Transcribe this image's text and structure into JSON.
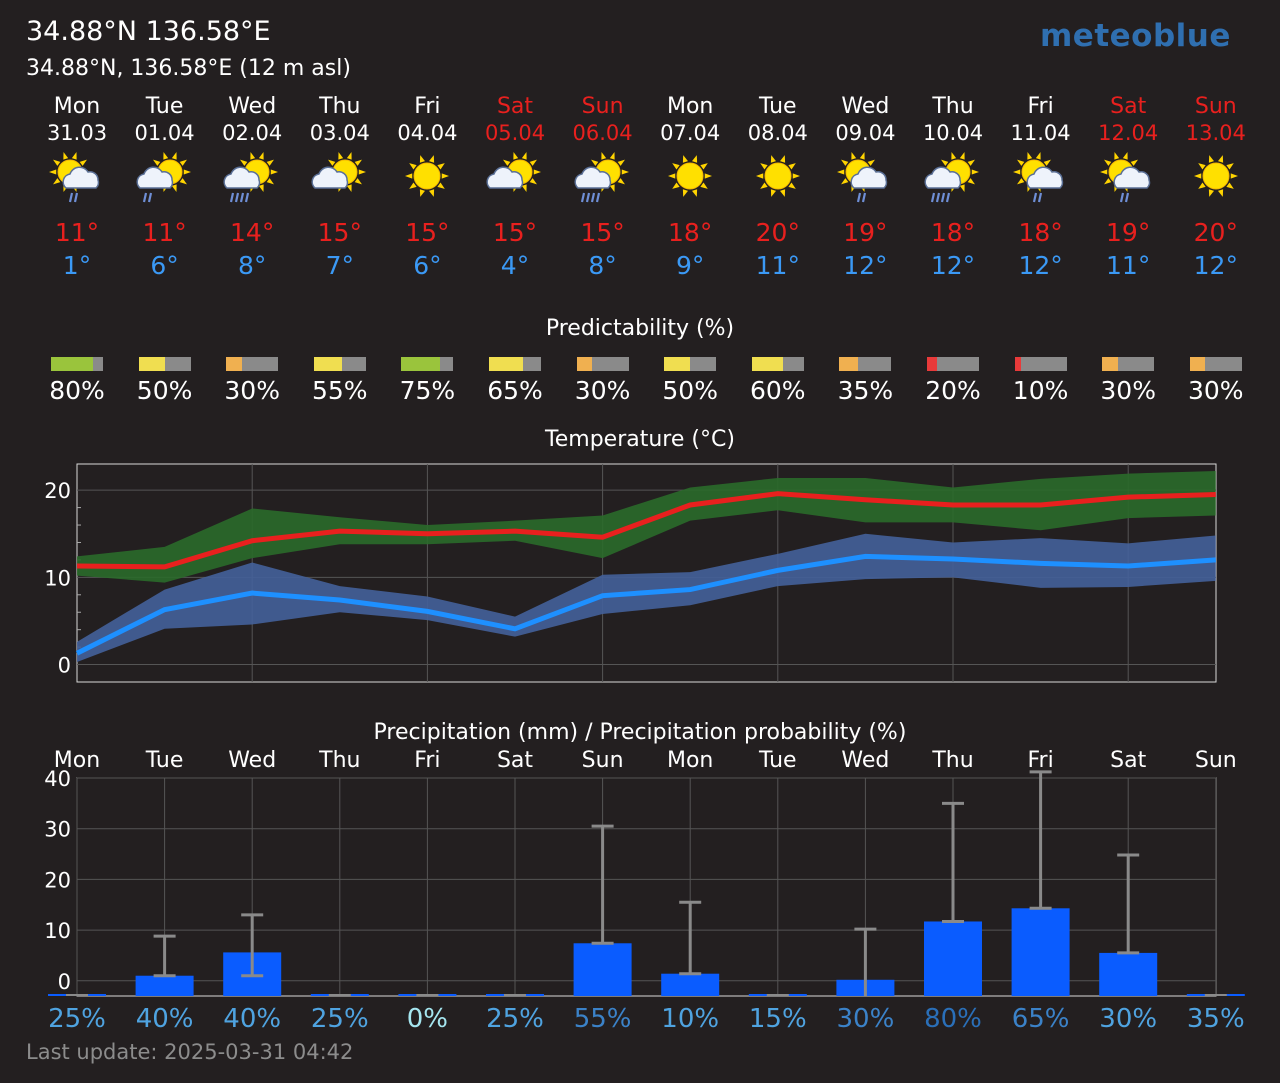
{
  "header": {
    "title": "34.88°N 136.58°E",
    "subtitle": "34.88°N, 136.58°E (12 m asl)",
    "logo": "meteoblue"
  },
  "days": [
    {
      "name": "Mon",
      "date": "31.03",
      "weekend": false,
      "icon": "sun-cloud-light-rain",
      "tmax": "11°",
      "tmin": "1°"
    },
    {
      "name": "Tue",
      "date": "01.04",
      "weekend": false,
      "icon": "cloud-sun-light-rain",
      "tmax": "11°",
      "tmin": "6°"
    },
    {
      "name": "Wed",
      "date": "02.04",
      "weekend": false,
      "icon": "cloud-sun-rain",
      "tmax": "14°",
      "tmin": "8°"
    },
    {
      "name": "Thu",
      "date": "03.04",
      "weekend": false,
      "icon": "cloud-sun",
      "tmax": "15°",
      "tmin": "7°"
    },
    {
      "name": "Fri",
      "date": "04.04",
      "weekend": false,
      "icon": "sun",
      "tmax": "15°",
      "tmin": "6°"
    },
    {
      "name": "Sat",
      "date": "05.04",
      "weekend": true,
      "icon": "cloud-sun",
      "tmax": "15°",
      "tmin": "4°"
    },
    {
      "name": "Sun",
      "date": "06.04",
      "weekend": true,
      "icon": "cloud-sun-rain",
      "tmax": "15°",
      "tmin": "8°"
    },
    {
      "name": "Mon",
      "date": "07.04",
      "weekend": false,
      "icon": "sun",
      "tmax": "18°",
      "tmin": "9°"
    },
    {
      "name": "Tue",
      "date": "08.04",
      "weekend": false,
      "icon": "sun",
      "tmax": "20°",
      "tmin": "11°"
    },
    {
      "name": "Wed",
      "date": "09.04",
      "weekend": false,
      "icon": "sun-cloud-light-rain",
      "tmax": "19°",
      "tmin": "12°"
    },
    {
      "name": "Thu",
      "date": "10.04",
      "weekend": false,
      "icon": "cloud-sun-rain",
      "tmax": "18°",
      "tmin": "12°"
    },
    {
      "name": "Fri",
      "date": "11.04",
      "weekend": false,
      "icon": "sun-cloud-light-rain",
      "tmax": "18°",
      "tmin": "12°"
    },
    {
      "name": "Sat",
      "date": "12.04",
      "weekend": true,
      "icon": "sun-cloud-light-rain",
      "tmax": "19°",
      "tmin": "11°"
    },
    {
      "name": "Sun",
      "date": "13.04",
      "weekend": true,
      "icon": "sun",
      "tmax": "20°",
      "tmin": "12°"
    }
  ],
  "predictability": {
    "title": "Predictability (%)",
    "values": [
      80,
      50,
      30,
      55,
      75,
      65,
      30,
      50,
      60,
      35,
      20,
      10,
      30,
      30
    ],
    "labels": [
      "80%",
      "50%",
      "30%",
      "55%",
      "75%",
      "65%",
      "30%",
      "50%",
      "60%",
      "35%",
      "20%",
      "10%",
      "30%",
      "30%"
    ],
    "colors": [
      "#9ac43c",
      "#f0de50",
      "#f0b050",
      "#f0de50",
      "#9ac43c",
      "#f0de50",
      "#f0b050",
      "#f0de50",
      "#f0de50",
      "#f0b050",
      "#e83a3a",
      "#e83a3a",
      "#f0b050",
      "#f0b050"
    ]
  },
  "chart_data": [
    {
      "type": "line",
      "title": "Temperature (°C)",
      "x": [
        "31.03",
        "01.04",
        "02.04",
        "03.04",
        "04.04",
        "05.04",
        "06.04",
        "07.04",
        "08.04",
        "09.04",
        "10.04",
        "11.04",
        "12.04",
        "13.04"
      ],
      "ylim": [
        -2,
        23
      ],
      "yticks": [
        0,
        10,
        20
      ],
      "grid": true,
      "series": [
        {
          "values": [
            11.3,
            11.2,
            14.2,
            15.3,
            15,
            15.3,
            14.6,
            18.3,
            19.6,
            18.9,
            18.3,
            18.3,
            19.2,
            19.5
          ],
          "color": "#e8201e"
        },
        {
          "values": [
            10.2,
            9.4,
            12.2,
            13.8,
            13.8,
            14.2,
            12.2,
            16.5,
            17.7,
            16.3,
            16.3,
            15.4,
            16.8,
            17.1
          ],
          "color": "#2a6a2a"
        },
        {
          "values": [
            12.4,
            13.5,
            17.9,
            16.9,
            16,
            16.5,
            17.1,
            20.3,
            21.4,
            21.4,
            20.3,
            21.3,
            21.9,
            22.2
          ],
          "color": "#2a6a2a"
        },
        {
          "values": [
            1.3,
            6.3,
            8.2,
            7.4,
            6.1,
            4.1,
            7.9,
            8.6,
            10.8,
            12.4,
            12.1,
            11.6,
            11.3,
            12
          ],
          "color": "#1e90ff"
        },
        {
          "values": [
            0.3,
            4.1,
            4.6,
            6,
            5.1,
            3.2,
            5.8,
            6.8,
            9,
            9.8,
            10,
            8.8,
            8.9,
            9.6
          ],
          "color": "#44609a"
        },
        {
          "values": [
            2.6,
            8.6,
            11.7,
            9,
            7.8,
            5.5,
            10.3,
            10.6,
            12.7,
            15,
            14,
            14.5,
            13.9,
            14.8
          ],
          "color": "#44609a"
        }
      ]
    },
    {
      "type": "bar",
      "title": "Precipitation (mm) / Precipitation probability (%)",
      "categories": [
        "Mon",
        "Tue",
        "Wed",
        "Thu",
        "Fri",
        "Sat",
        "Sun",
        "Mon",
        "Tue",
        "Wed",
        "Thu",
        "Fri",
        "Sat",
        "Sun"
      ],
      "ylim": [
        -3,
        40
      ],
      "yticks": [
        0,
        10,
        20,
        30,
        40
      ],
      "grid": true,
      "values": [
        0,
        1,
        5.6,
        0,
        0,
        0,
        7.4,
        1.4,
        0,
        0.2,
        11.7,
        14.3,
        5.5,
        0
      ],
      "error_low": [
        0,
        1,
        1,
        0,
        0,
        0,
        7.4,
        1.4,
        0,
        0,
        11.7,
        14.3,
        5.5,
        0
      ],
      "error_high": [
        0,
        8.8,
        13,
        0,
        0,
        0,
        30.5,
        15.5,
        0,
        10.2,
        35,
        41.2,
        24.8,
        0
      ],
      "probability_labels": [
        "25%",
        "40%",
        "40%",
        "25%",
        "0%",
        "25%",
        "55%",
        "10%",
        "15%",
        "30%",
        "80%",
        "65%",
        "30%",
        "35%"
      ],
      "probability_colors": [
        "#4fa3e0",
        "#4fa3e0",
        "#4fa3e0",
        "#4fa3e0",
        "#a5e6f0",
        "#4fa3e0",
        "#3b82c8",
        "#4fa3e0",
        "#4fa3e0",
        "#3b82c8",
        "#2a6fb8",
        "#3b82c8",
        "#4fa3e0",
        "#4fa3e0"
      ],
      "bar_color": "#0a5cff"
    }
  ],
  "footer": {
    "last_update": "Last update: 2025-03-31 04:42"
  }
}
